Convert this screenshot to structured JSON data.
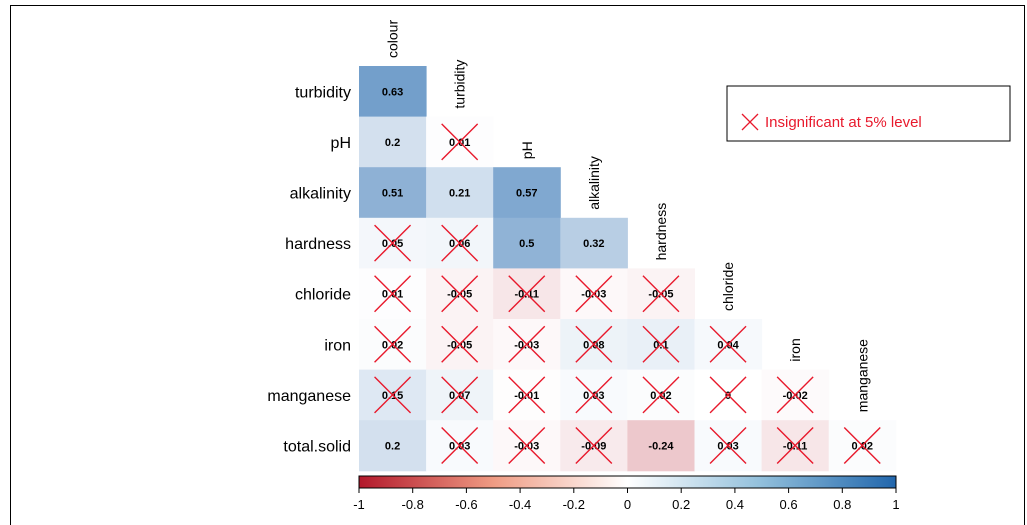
{
  "chart_data": {
    "type": "heatmap",
    "title": "",
    "variables": [
      "colour",
      "turbidity",
      "pH",
      "alkalinity",
      "hardness",
      "chloride",
      "iron",
      "manganese",
      "total.solid"
    ],
    "row_labels": [
      "turbidity",
      "pH",
      "alkalinity",
      "hardness",
      "chloride",
      "iron",
      "manganese",
      "total.solid"
    ],
    "column_labels": [
      "colour",
      "turbidity",
      "pH",
      "alkalinity",
      "hardness",
      "chloride",
      "iron",
      "manganese"
    ],
    "cells": [
      [
        {
          "v": 0.63,
          "t": "0.63",
          "x": false
        }
      ],
      [
        {
          "v": 0.2,
          "t": "0.2",
          "x": false
        },
        {
          "v": 0.01,
          "t": "0.01",
          "x": true
        }
      ],
      [
        {
          "v": 0.51,
          "t": "0.51",
          "x": false
        },
        {
          "v": 0.21,
          "t": "0.21",
          "x": false
        },
        {
          "v": 0.57,
          "t": "0.57",
          "x": false
        }
      ],
      [
        {
          "v": 0.05,
          "t": "0.05",
          "x": true
        },
        {
          "v": 0.06,
          "t": "0.06",
          "x": true
        },
        {
          "v": 0.5,
          "t": "0.5",
          "x": false
        },
        {
          "v": 0.32,
          "t": "0.32",
          "x": false
        }
      ],
      [
        {
          "v": 0.01,
          "t": "0.01",
          "x": true
        },
        {
          "v": -0.05,
          "t": "-0.05",
          "x": true
        },
        {
          "v": -0.11,
          "t": "-0.11",
          "x": true
        },
        {
          "v": -0.03,
          "t": "-0.03",
          "x": true
        },
        {
          "v": -0.05,
          "t": "-0.05",
          "x": true
        }
      ],
      [
        {
          "v": 0.02,
          "t": "0.02",
          "x": true
        },
        {
          "v": -0.05,
          "t": "-0.05",
          "x": true
        },
        {
          "v": -0.03,
          "t": "-0.03",
          "x": true
        },
        {
          "v": 0.08,
          "t": "0.08",
          "x": true
        },
        {
          "v": 0.1,
          "t": "0.1",
          "x": true
        },
        {
          "v": 0.04,
          "t": "0.04",
          "x": true
        }
      ],
      [
        {
          "v": 0.15,
          "t": "0.15",
          "x": true
        },
        {
          "v": 0.07,
          "t": "0.07",
          "x": true
        },
        {
          "v": -0.01,
          "t": "-0.01",
          "x": true
        },
        {
          "v": 0.03,
          "t": "0.03",
          "x": true
        },
        {
          "v": 0.02,
          "t": "0.02",
          "x": true
        },
        {
          "v": 0,
          "t": "0",
          "x": true
        },
        {
          "v": -0.02,
          "t": "-0.02",
          "x": true
        }
      ],
      [
        {
          "v": 0.2,
          "t": "0.2",
          "x": false
        },
        {
          "v": 0.03,
          "t": "0.03",
          "x": true
        },
        {
          "v": -0.03,
          "t": "-0.03",
          "x": true
        },
        {
          "v": -0.09,
          "t": "-0.09",
          "x": true
        },
        {
          "v": -0.24,
          "t": "-0.24",
          "x": false
        },
        {
          "v": 0.03,
          "t": "0.03",
          "x": true
        },
        {
          "v": -0.11,
          "t": "-0.11",
          "x": true
        },
        {
          "v": 0.02,
          "t": "0.02",
          "x": true
        }
      ]
    ],
    "color_scale": {
      "range": [
        -1,
        1
      ],
      "ticks": [
        "-1",
        "-0.8",
        "-0.6",
        "-0.4",
        "-0.2",
        "0",
        "0.2",
        "0.4",
        "0.6",
        "0.8",
        "1"
      ],
      "low_color": "#b2182b",
      "mid_color": "#ffffff",
      "high_color": "#2166ac"
    },
    "legend": {
      "text": "Insignificant at 5% level",
      "placement": "top-right",
      "marker_color": "#e8192c"
    }
  }
}
